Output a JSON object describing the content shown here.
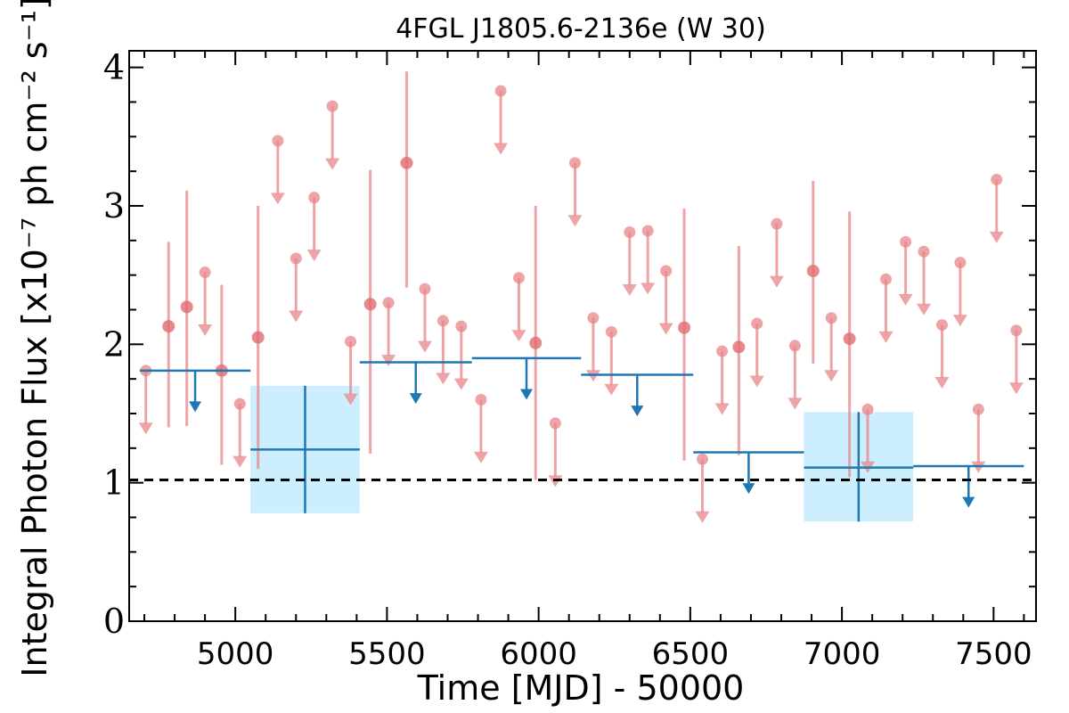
{
  "chart_data": {
    "type": "scatter",
    "title": "4FGL J1805.6-2136e (W 30)",
    "xlabel": "Time [MJD] - 50000",
    "ylabel": "Integral Photon Flux [x10⁻⁷ ph cm⁻² s⁻¹]",
    "xlim": [
      4650,
      7640
    ],
    "ylim": [
      0,
      4.12
    ],
    "x_ticks": [
      5000,
      5500,
      6000,
      6500,
      7000,
      7500
    ],
    "y_ticks": [
      0,
      1,
      2,
      3,
      4
    ],
    "grid": false,
    "reference_line": {
      "y": 1.02,
      "style": "dashed",
      "color": "#000000"
    },
    "colors": {
      "fine_bins": "#e8868a",
      "coarse_bins": "#1f77b4",
      "coarse_box_fill": "#cdeeff"
    },
    "fine_upper_limits": [
      {
        "x": 4705,
        "y": 1.81,
        "y_lo": 1.35
      },
      {
        "x": 4900,
        "y": 2.52,
        "y_lo": 2.06
      },
      {
        "x": 5015,
        "y": 1.57,
        "y_lo": 1.11
      },
      {
        "x": 5140,
        "y": 3.47,
        "y_lo": 3.01
      },
      {
        "x": 5200,
        "y": 2.62,
        "y_lo": 2.16
      },
      {
        "x": 5260,
        "y": 3.06,
        "y_lo": 2.6
      },
      {
        "x": 5320,
        "y": 3.72,
        "y_lo": 3.26
      },
      {
        "x": 5380,
        "y": 2.02,
        "y_lo": 1.56
      },
      {
        "x": 5505,
        "y": 2.3,
        "y_lo": 1.84
      },
      {
        "x": 5625,
        "y": 2.4,
        "y_lo": 1.94
      },
      {
        "x": 5685,
        "y": 2.17,
        "y_lo": 1.71
      },
      {
        "x": 5745,
        "y": 2.13,
        "y_lo": 1.67
      },
      {
        "x": 5810,
        "y": 1.6,
        "y_lo": 1.14
      },
      {
        "x": 5875,
        "y": 3.83,
        "y_lo": 3.37
      },
      {
        "x": 5935,
        "y": 2.48,
        "y_lo": 2.02
      },
      {
        "x": 6055,
        "y": 1.43,
        "y_lo": 0.97
      },
      {
        "x": 6120,
        "y": 3.31,
        "y_lo": 2.85
      },
      {
        "x": 6180,
        "y": 2.19,
        "y_lo": 1.73
      },
      {
        "x": 6240,
        "y": 2.09,
        "y_lo": 1.63
      },
      {
        "x": 6300,
        "y": 2.81,
        "y_lo": 2.35
      },
      {
        "x": 6360,
        "y": 2.82,
        "y_lo": 2.36
      },
      {
        "x": 6420,
        "y": 2.53,
        "y_lo": 2.07
      },
      {
        "x": 6540,
        "y": 1.17,
        "y_lo": 0.71
      },
      {
        "x": 6605,
        "y": 1.95,
        "y_lo": 1.49
      },
      {
        "x": 6720,
        "y": 2.15,
        "y_lo": 1.69
      },
      {
        "x": 6785,
        "y": 2.87,
        "y_lo": 2.41
      },
      {
        "x": 6845,
        "y": 1.99,
        "y_lo": 1.53
      },
      {
        "x": 6965,
        "y": 2.19,
        "y_lo": 1.73
      },
      {
        "x": 7085,
        "y": 1.53,
        "y_lo": 1.07
      },
      {
        "x": 7145,
        "y": 2.47,
        "y_lo": 2.01
      },
      {
        "x": 7210,
        "y": 2.74,
        "y_lo": 2.28
      },
      {
        "x": 7270,
        "y": 2.67,
        "y_lo": 2.21
      },
      {
        "x": 7330,
        "y": 2.14,
        "y_lo": 1.68
      },
      {
        "x": 7390,
        "y": 2.59,
        "y_lo": 2.13
      },
      {
        "x": 7450,
        "y": 1.53,
        "y_lo": 1.07
      },
      {
        "x": 7510,
        "y": 3.19,
        "y_lo": 2.73
      },
      {
        "x": 7575,
        "y": 2.1,
        "y_lo": 1.64
      }
    ],
    "fine_detections": [
      {
        "x": 4780,
        "y": 2.13,
        "y_lo": 1.4,
        "y_hi": 2.74
      },
      {
        "x": 4840,
        "y": 2.27,
        "y_lo": 1.41,
        "y_hi": 3.11
      },
      {
        "x": 4955,
        "y": 1.81,
        "y_lo": 1.13,
        "y_hi": 2.43
      },
      {
        "x": 5075,
        "y": 2.05,
        "y_lo": 1.1,
        "y_hi": 3.0
      },
      {
        "x": 5445,
        "y": 2.29,
        "y_lo": 1.21,
        "y_hi": 3.26
      },
      {
        "x": 5565,
        "y": 3.31,
        "y_lo": 2.41,
        "y_hi": 3.97
      },
      {
        "x": 5990,
        "y": 2.01,
        "y_lo": 1.02,
        "y_hi": 3.0
      },
      {
        "x": 6480,
        "y": 2.12,
        "y_lo": 1.16,
        "y_hi": 2.98
      },
      {
        "x": 6660,
        "y": 1.98,
        "y_lo": 1.2,
        "y_hi": 2.71
      },
      {
        "x": 6905,
        "y": 2.53,
        "y_lo": 1.86,
        "y_hi": 3.18
      },
      {
        "x": 7025,
        "y": 2.04,
        "y_lo": 1.04,
        "y_hi": 2.96
      }
    ],
    "coarse_upper_limits": [
      {
        "x0": 4685,
        "x1": 5050,
        "y": 1.81,
        "y_lo": 1.51
      },
      {
        "x0": 5410,
        "x1": 5780,
        "y": 1.87,
        "y_lo": 1.57
      },
      {
        "x0": 5780,
        "x1": 6140,
        "y": 1.9,
        "y_lo": 1.6
      },
      {
        "x0": 6140,
        "x1": 6510,
        "y": 1.78,
        "y_lo": 1.48
      },
      {
        "x0": 6510,
        "x1": 6875,
        "y": 1.22,
        "y_lo": 0.92
      },
      {
        "x0": 7235,
        "x1": 7600,
        "y": 1.12,
        "y_lo": 0.82
      }
    ],
    "coarse_detections": [
      {
        "x0": 5050,
        "x1": 5410,
        "x": 5230,
        "y": 1.24,
        "y_lo": 0.78,
        "y_hi": 1.7
      },
      {
        "x0": 6875,
        "x1": 7235,
        "x": 7055,
        "y": 1.11,
        "y_lo": 0.72,
        "y_hi": 1.51
      }
    ]
  }
}
